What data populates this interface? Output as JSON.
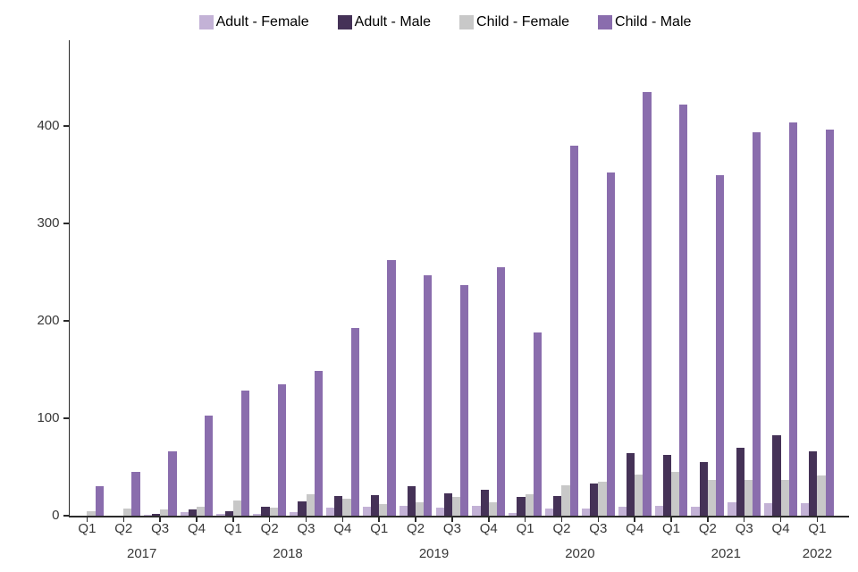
{
  "chart_data": {
    "type": "bar",
    "title": "",
    "xlabel": "",
    "ylabel": "",
    "grid": false,
    "legend_position": "top",
    "ylim": [
      0,
      480
    ],
    "yticks": [
      0,
      100,
      200,
      300,
      400
    ],
    "categories": [
      "Q1",
      "Q2",
      "Q3",
      "Q4",
      "Q1",
      "Q2",
      "Q3",
      "Q4",
      "Q1",
      "Q2",
      "Q3",
      "Q4",
      "Q1",
      "Q2",
      "Q3",
      "Q4",
      "Q1",
      "Q2",
      "Q3",
      "Q4",
      "Q1"
    ],
    "year_groups": [
      {
        "label": "2017",
        "quarters": 4
      },
      {
        "label": "2018",
        "quarters": 4
      },
      {
        "label": "2019",
        "quarters": 4
      },
      {
        "label": "2020",
        "quarters": 4
      },
      {
        "label": "2021",
        "quarters": 4
      },
      {
        "label": "2022",
        "quarters": 1
      }
    ],
    "series": [
      {
        "name": "Adult - Female",
        "color": "#c3b2d6",
        "values": [
          0,
          0,
          1,
          4,
          2,
          2,
          4,
          8,
          9,
          10,
          8,
          10,
          3,
          7,
          7,
          9,
          10,
          9,
          14,
          13,
          13
        ]
      },
      {
        "name": "Adult - Male",
        "color": "#453257",
        "values": [
          0,
          0,
          2,
          6,
          5,
          9,
          15,
          20,
          21,
          30,
          23,
          27,
          19,
          20,
          33,
          64,
          62,
          55,
          70,
          83,
          66
        ]
      },
      {
        "name": "Child - Female",
        "color": "#c8c8c8",
        "values": [
          5,
          7,
          6,
          9,
          16,
          8,
          22,
          17,
          12,
          14,
          19,
          14,
          22,
          31,
          35,
          42,
          45,
          37,
          37,
          37,
          41
        ]
      },
      {
        "name": "Child - Male",
        "color": "#8a6dad",
        "values": [
          30,
          45,
          66,
          103,
          128,
          135,
          149,
          193,
          262,
          247,
          237,
          255,
          188,
          380,
          352,
          435,
          422,
          350,
          394,
          404,
          396
        ]
      }
    ]
  },
  "axis": {
    "line_color": "#2b2b2b",
    "label_color": "#383838"
  }
}
